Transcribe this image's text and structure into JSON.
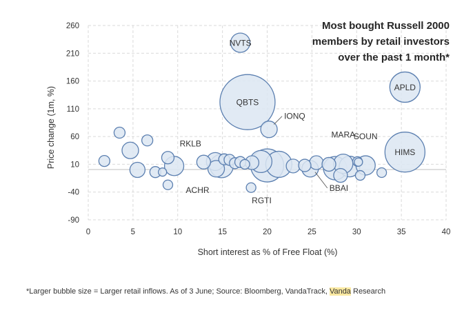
{
  "chart_data": {
    "type": "scatter",
    "title": [
      "Most bought Russell 2000",
      "members by retail investors",
      "over the past 1 month*"
    ],
    "xlabel": "Short interest as % of Free Float (%)",
    "ylabel": "Price change (1m, %)",
    "xlim": [
      0,
      40
    ],
    "ylim": [
      -90,
      260
    ],
    "xticks": [
      "0",
      "5",
      "10",
      "15",
      "20",
      "25",
      "30",
      "35",
      "40"
    ],
    "yticks": [
      "260",
      "210",
      "160",
      "110",
      "60",
      "10",
      "-40",
      "-90"
    ],
    "grid": true,
    "bubble_fill": "#dce6f2",
    "bubble_stroke": "#5b7fb0",
    "points": [
      {
        "x": 17.0,
        "y": 229,
        "size": 14,
        "label": "NVTS",
        "label_inside": true
      },
      {
        "x": 17.8,
        "y": 122,
        "size": 40,
        "label": "QBTS",
        "label_inside": true
      },
      {
        "x": 35.4,
        "y": 149,
        "size": 22,
        "label": "APLD",
        "label_inside": true
      },
      {
        "x": 35.4,
        "y": 32,
        "size": 29,
        "label": "HIMS",
        "label_inside": true
      },
      {
        "x": 20.2,
        "y": 73,
        "size": 12,
        "label": "IONQ",
        "label_inside": false
      },
      {
        "x": 14.2,
        "y": 15,
        "size": 13,
        "label": "RKLB",
        "label_inside": false
      },
      {
        "x": 14.3,
        "y": 2,
        "size": 12,
        "label": "ACHR",
        "label_inside": false
      },
      {
        "x": 20.0,
        "y": 8,
        "size": 24,
        "label": "RGTI",
        "label_inside": false
      },
      {
        "x": 24.8,
        "y": 2,
        "size": 12,
        "label": "BBAI",
        "label_inside": false
      },
      {
        "x": 28.5,
        "y": 11,
        "size": 14,
        "label": "MARA",
        "label_inside": false
      },
      {
        "x": 31.0,
        "y": 8,
        "size": 14,
        "label": "SOUN",
        "label_inside": false
      },
      {
        "x": 1.8,
        "y": 16,
        "size": 8
      },
      {
        "x": 3.5,
        "y": 67,
        "size": 8
      },
      {
        "x": 4.7,
        "y": 35,
        "size": 12
      },
      {
        "x": 5.5,
        "y": 0,
        "size": 11
      },
      {
        "x": 6.6,
        "y": 53,
        "size": 8
      },
      {
        "x": 7.5,
        "y": -4,
        "size": 8
      },
      {
        "x": 8.3,
        "y": -4,
        "size": 6
      },
      {
        "x": 8.9,
        "y": 22,
        "size": 9
      },
      {
        "x": 8.9,
        "y": -27,
        "size": 7
      },
      {
        "x": 9.6,
        "y": 7,
        "size": 14
      },
      {
        "x": 12.9,
        "y": 14,
        "size": 10
      },
      {
        "x": 14.9,
        "y": 7,
        "size": 17
      },
      {
        "x": 15.2,
        "y": 19,
        "size": 8
      },
      {
        "x": 15.8,
        "y": 18,
        "size": 8
      },
      {
        "x": 16.4,
        "y": 12,
        "size": 8
      },
      {
        "x": 17.0,
        "y": 14,
        "size": 8
      },
      {
        "x": 17.5,
        "y": 10,
        "size": 7
      },
      {
        "x": 18.3,
        "y": 13,
        "size": 10
      },
      {
        "x": 18.2,
        "y": -32,
        "size": 7
      },
      {
        "x": 19.3,
        "y": 15,
        "size": 16
      },
      {
        "x": 21.3,
        "y": 10,
        "size": 19
      },
      {
        "x": 22.9,
        "y": 7,
        "size": 10
      },
      {
        "x": 24.2,
        "y": 8,
        "size": 9
      },
      {
        "x": 25.5,
        "y": 13,
        "size": 10
      },
      {
        "x": 26.9,
        "y": 10,
        "size": 10
      },
      {
        "x": 27.6,
        "y": 3,
        "size": 17
      },
      {
        "x": 28.2,
        "y": -10,
        "size": 10
      },
      {
        "x": 29.2,
        "y": 6,
        "size": 15
      },
      {
        "x": 30.1,
        "y": 15,
        "size": 7
      },
      {
        "x": 30.4,
        "y": -10,
        "size": 7
      },
      {
        "x": 30.2,
        "y": 14,
        "size": 6
      },
      {
        "x": 32.8,
        "y": -5,
        "size": 7
      }
    ],
    "footnote": [
      "*Larger bubble size = Larger retail inflows. As of 3 June; Source: Bloomberg, VandaTrack, ",
      "Vanda",
      " Research"
    ]
  }
}
